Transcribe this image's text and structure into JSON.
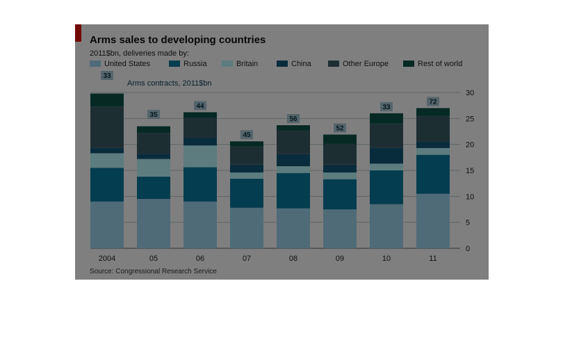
{
  "chart_data": {
    "type": "bar",
    "stacked": true,
    "title": "Arms sales to developing countries",
    "subtitle": "2011$bn, deliveries made by:",
    "categories": [
      "2004",
      "05",
      "06",
      "07",
      "08",
      "09",
      "10",
      "11"
    ],
    "ylim": [
      0,
      30
    ],
    "yticks": [
      0,
      5,
      10,
      15,
      20,
      25,
      30
    ],
    "axis_position": "right",
    "grid": true,
    "legend_position": "top",
    "series": [
      {
        "name": "United States",
        "color": "#9fd7f0",
        "values": [
          9.0,
          9.5,
          9.0,
          7.8,
          7.7,
          7.5,
          8.5,
          10.5
        ]
      },
      {
        "name": "Russia",
        "color": "#0b7aa0",
        "values": [
          6.5,
          4.3,
          6.6,
          5.6,
          6.8,
          5.8,
          6.5,
          7.5
        ]
      },
      {
        "name": "Britain",
        "color": "#b8f8ff",
        "values": [
          2.8,
          3.4,
          4.2,
          1.2,
          1.3,
          1.3,
          1.3,
          1.3
        ]
      },
      {
        "name": "China",
        "color": "#13597a",
        "values": [
          1.0,
          1.0,
          1.5,
          1.5,
          2.3,
          1.5,
          3.0,
          1.2
        ]
      },
      {
        "name": "Other Europe",
        "color": "#3a5c66",
        "values": [
          8.0,
          4.0,
          3.8,
          3.5,
          4.6,
          4.0,
          4.7,
          5.0
        ]
      },
      {
        "name": "Rest of world",
        "color": "#0d5248",
        "values": [
          2.5,
          1.3,
          1.1,
          1.0,
          1.0,
          1.8,
          2.0,
          1.5
        ]
      }
    ],
    "contracts": {
      "label": "Arms contracts, 2011$bn",
      "values": [
        33,
        35,
        44,
        45,
        56,
        52,
        33,
        72
      ]
    },
    "source": "Source: Congressional Research Service"
  }
}
